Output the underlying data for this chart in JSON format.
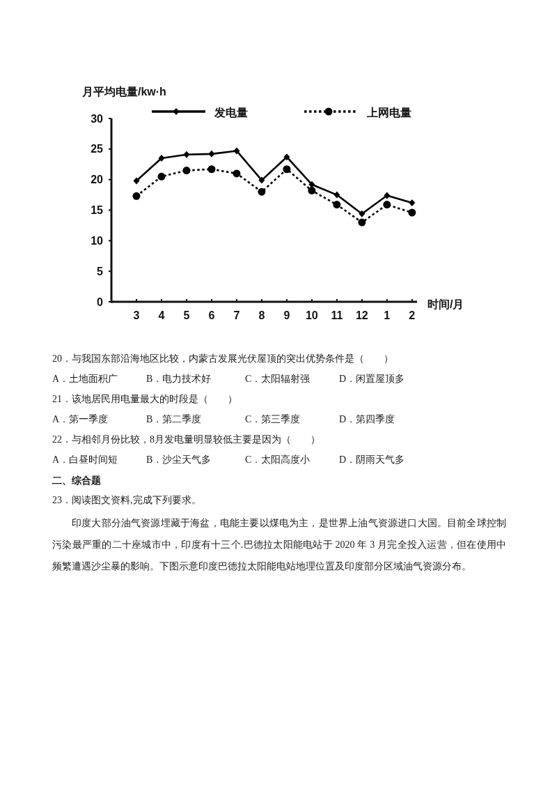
{
  "chart_data": {
    "type": "line",
    "ylabel": "月平均电量/kw·h",
    "xlabel": "时间/月",
    "categories": [
      "3",
      "4",
      "5",
      "6",
      "7",
      "8",
      "9",
      "10",
      "11",
      "12",
      "1",
      "2"
    ],
    "series": [
      {
        "name": "发电量",
        "color": "#000000",
        "marker": "diamond",
        "line_style": "solid",
        "values": [
          19.8,
          23.5,
          24.1,
          24.2,
          24.7,
          19.9,
          23.7,
          19.2,
          17.5,
          14.4,
          17.4,
          16.2
        ]
      },
      {
        "name": "上网电量",
        "color": "#000000",
        "marker": "circle",
        "line_style": "dotted",
        "values": [
          17.3,
          20.5,
          21.5,
          21.7,
          21.0,
          18.0,
          21.7,
          18.2,
          15.9,
          13.0,
          15.9,
          14.6
        ]
      }
    ],
    "ylim": [
      0,
      30
    ],
    "yticks": [
      0,
      5,
      10,
      15,
      20,
      25,
      30
    ],
    "grid": false,
    "legend": "top",
    "annotations": [
      "20．与我国东部沿海地区比较，内蒙古发展光伏屋顶的突出优势条件是（　　）",
      "A．土地面积广",
      "B．电力技术好",
      "C．太阳辐射强",
      "D．闲置屋顶多",
      "21．该地居民用电量最大的时段是（　　）",
      "A．第一季度",
      "B．第二季度",
      "C．第三季度",
      "D．第四季度",
      "22．与相邻月份比较，8月发电量明显较低主要是因为（　　）",
      "A．白昼时间短",
      "B．沙尘天气多",
      "C．太阳高度小",
      "D．阴雨天气多",
      "二、综合题",
      "23．阅读图文资料,完成下列要求。",
      "印度大部分油气资源埋藏于海盆，电能主要以煤电为主，是世界上油气资源进口大国。目前全球控制污染最严重的二十座城市中，印度有十三个.巴德拉太阳能电站于 2020 年 3 月完全投入运营，但在使用中频繁遭遇沙尘暴的影响。下图示意印度巴德拉太阳能电站地理位置及印度部分区域油气资源分布。"
    ]
  }
}
